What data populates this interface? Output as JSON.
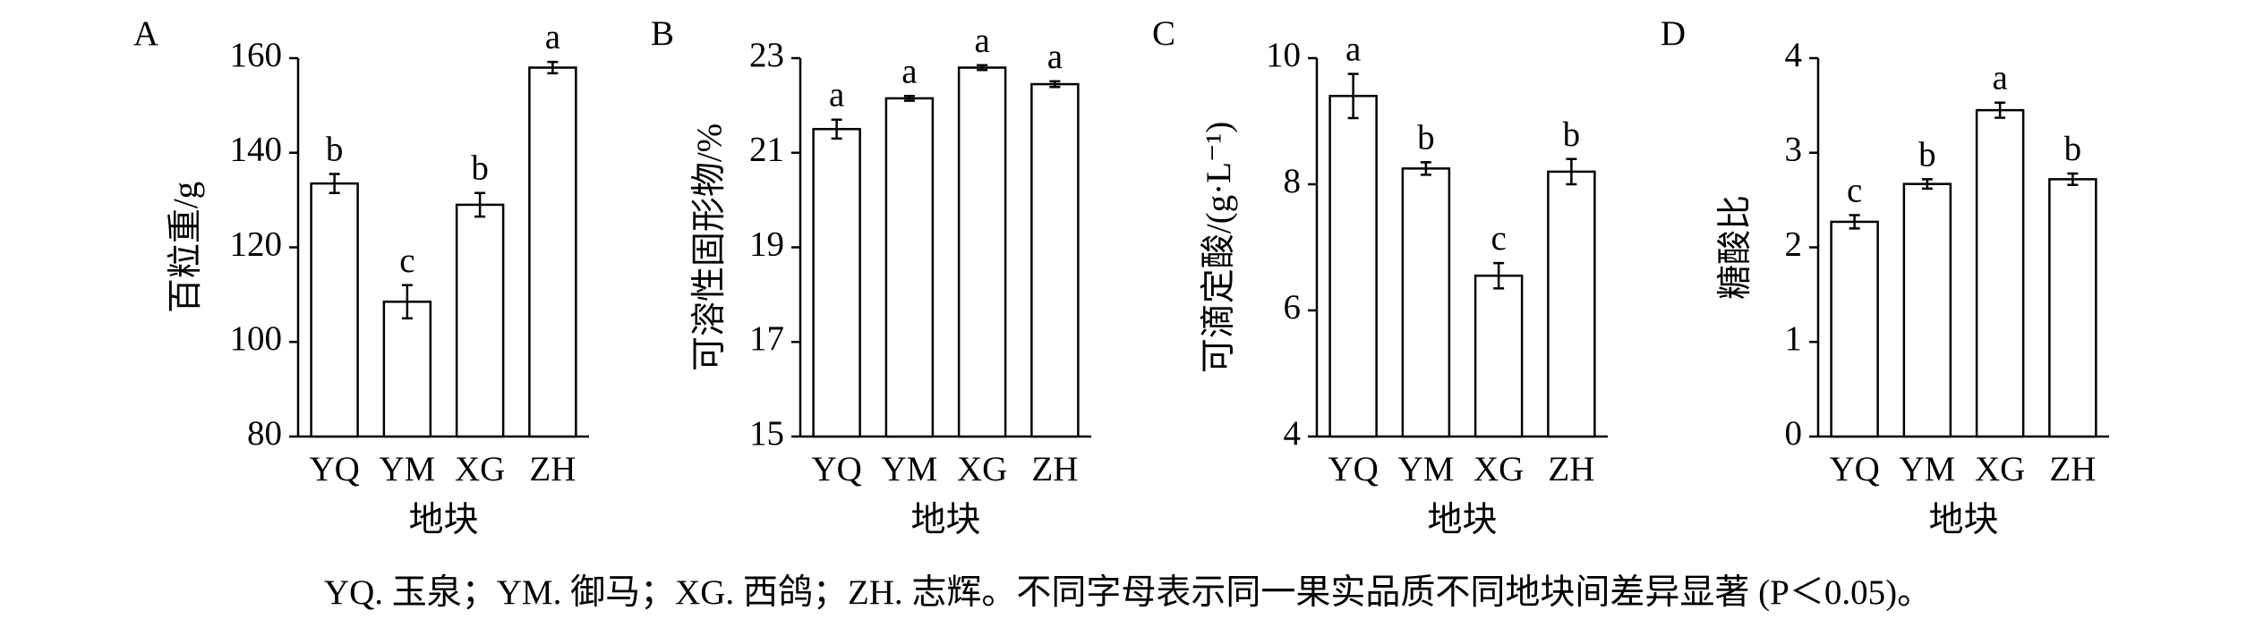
{
  "chart_data": [
    {
      "type": "bar",
      "panel": "A",
      "ylabel": "百粒重/g",
      "xlabel": "地块",
      "categories": [
        "YQ",
        "YM",
        "XG",
        "ZH"
      ],
      "values": [
        133.5,
        108.5,
        129,
        158
      ],
      "errors": [
        2,
        3.5,
        2.5,
        1.2
      ],
      "letters": [
        "b",
        "c",
        "b",
        "a"
      ],
      "color": "#ffffff",
      "ylim": [
        80,
        160
      ],
      "yticks": [
        80,
        100,
        120,
        140,
        160
      ]
    },
    {
      "type": "bar",
      "panel": "B",
      "ylabel": "可溶性固形物/%",
      "xlabel": "地块",
      "categories": [
        "YQ",
        "YM",
        "XG",
        "ZH"
      ],
      "values": [
        21.5,
        22.15,
        22.8,
        22.45
      ],
      "errors": [
        0.2,
        0.05,
        0.05,
        0.06
      ],
      "letters": [
        "a",
        "a",
        "a",
        "a"
      ],
      "color": "#ffffff",
      "ylim": [
        15,
        23
      ],
      "yticks": [
        15,
        17,
        19,
        21,
        23
      ]
    },
    {
      "type": "bar",
      "panel": "C",
      "ylabel": "可滴定酸/(g·L⁻¹)",
      "xlabel": "地块",
      "categories": [
        "YQ",
        "YM",
        "XG",
        "ZH"
      ],
      "values": [
        9.4,
        8.25,
        6.55,
        8.2
      ],
      "errors": [
        0.35,
        0.1,
        0.2,
        0.2
      ],
      "letters": [
        "a",
        "b",
        "c",
        "b"
      ],
      "color": "#ffffff",
      "ylim": [
        4,
        10
      ],
      "yticks": [
        4,
        6,
        8,
        10
      ]
    },
    {
      "type": "bar",
      "panel": "D",
      "ylabel": "糖酸比",
      "xlabel": "地块",
      "categories": [
        "YQ",
        "YM",
        "XG",
        "ZH"
      ],
      "values": [
        2.27,
        2.67,
        3.45,
        2.72
      ],
      "errors": [
        0.07,
        0.05,
        0.08,
        0.06
      ],
      "letters": [
        "c",
        "b",
        "a",
        "b"
      ],
      "color": "#ffffff",
      "ylim": [
        0,
        4
      ],
      "yticks": [
        0,
        1,
        2,
        3,
        4
      ]
    }
  ],
  "caption": "YQ. 玉泉；YM. 御马；XG. 西鸽；ZH. 志辉。不同字母表示同一果实品质不同地块间差异显著 (P＜0.05)。"
}
